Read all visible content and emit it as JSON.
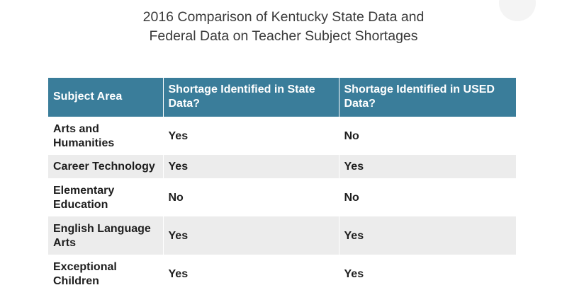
{
  "title": {
    "line1": "2016 Comparison of Kentucky State Data and",
    "line2": "Federal Data on Teacher Subject Shortages"
  },
  "table": {
    "headers": [
      "Subject Area",
      "Shortage Identified in State Data?",
      "Shortage Identified in USED Data?"
    ],
    "rows": [
      [
        "Arts and Humanities",
        "Yes",
        "No"
      ],
      [
        "Career Technology",
        "Yes",
        "Yes"
      ],
      [
        "Elementary Education",
        "No",
        "No"
      ],
      [
        "English Language Arts",
        "Yes",
        "Yes"
      ],
      [
        "Exceptional Children",
        "Yes",
        "Yes"
      ]
    ]
  },
  "colors": {
    "header_bg": "#3a7d9a",
    "header_text": "#ffffff",
    "stripe_bg": "#ececec",
    "title_text": "#3a3a3a"
  }
}
